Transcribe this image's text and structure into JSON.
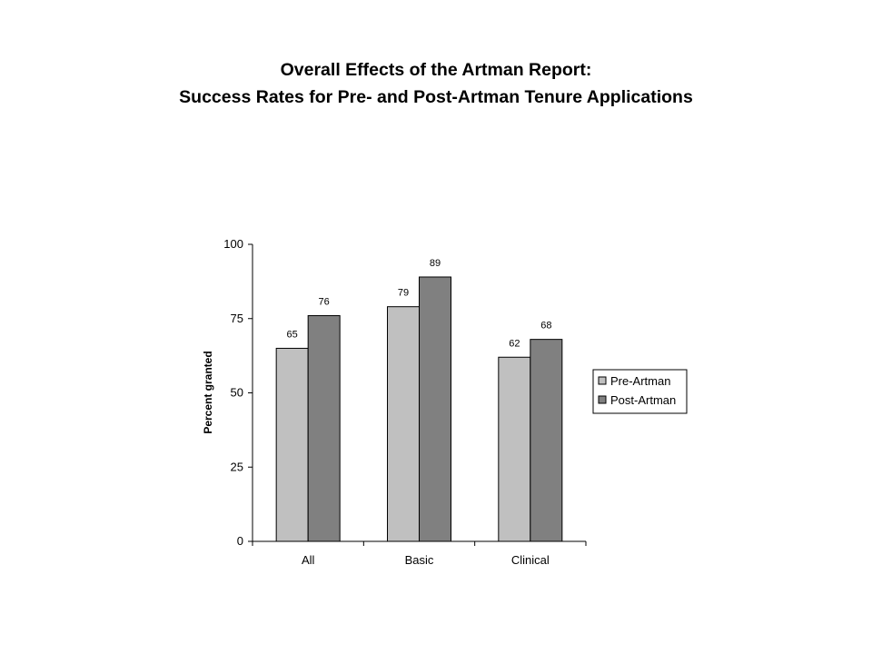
{
  "chart_data": {
    "type": "bar",
    "title": "Overall Effects of the Artman Report:",
    "subtitle": "Success Rates for Pre- and Post-Artman Tenure Applications",
    "ylabel": "Percent granted",
    "xlabel": "",
    "categories": [
      "All",
      "Basic",
      "Clinical"
    ],
    "series": [
      {
        "name": "Pre-Artman",
        "values": [
          65,
          79,
          62
        ],
        "color": "#c0c0c0"
      },
      {
        "name": "Post-Artman",
        "values": [
          76,
          89,
          68
        ],
        "color": "#808080"
      }
    ],
    "ylim": [
      0,
      100
    ],
    "yticks": [
      0,
      25,
      50,
      75,
      100
    ],
    "grid": false,
    "legend_position": "right",
    "data_labels": true
  }
}
